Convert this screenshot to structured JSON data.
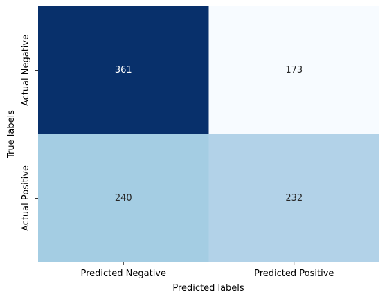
{
  "chart_data": {
    "type": "heatmap",
    "title": "",
    "xlabel": "Predicted labels",
    "ylabel": "True labels",
    "x_categories": [
      "Predicted Negative",
      "Predicted Positive"
    ],
    "y_categories": [
      "Actual Negative",
      "Actual Positive"
    ],
    "values": [
      [
        361,
        173
      ],
      [
        240,
        232
      ]
    ],
    "colormap": "Blues",
    "colorbar": false,
    "annotations": true,
    "colors": {
      "low": "#f7fbff",
      "high": "#08306b"
    }
  }
}
